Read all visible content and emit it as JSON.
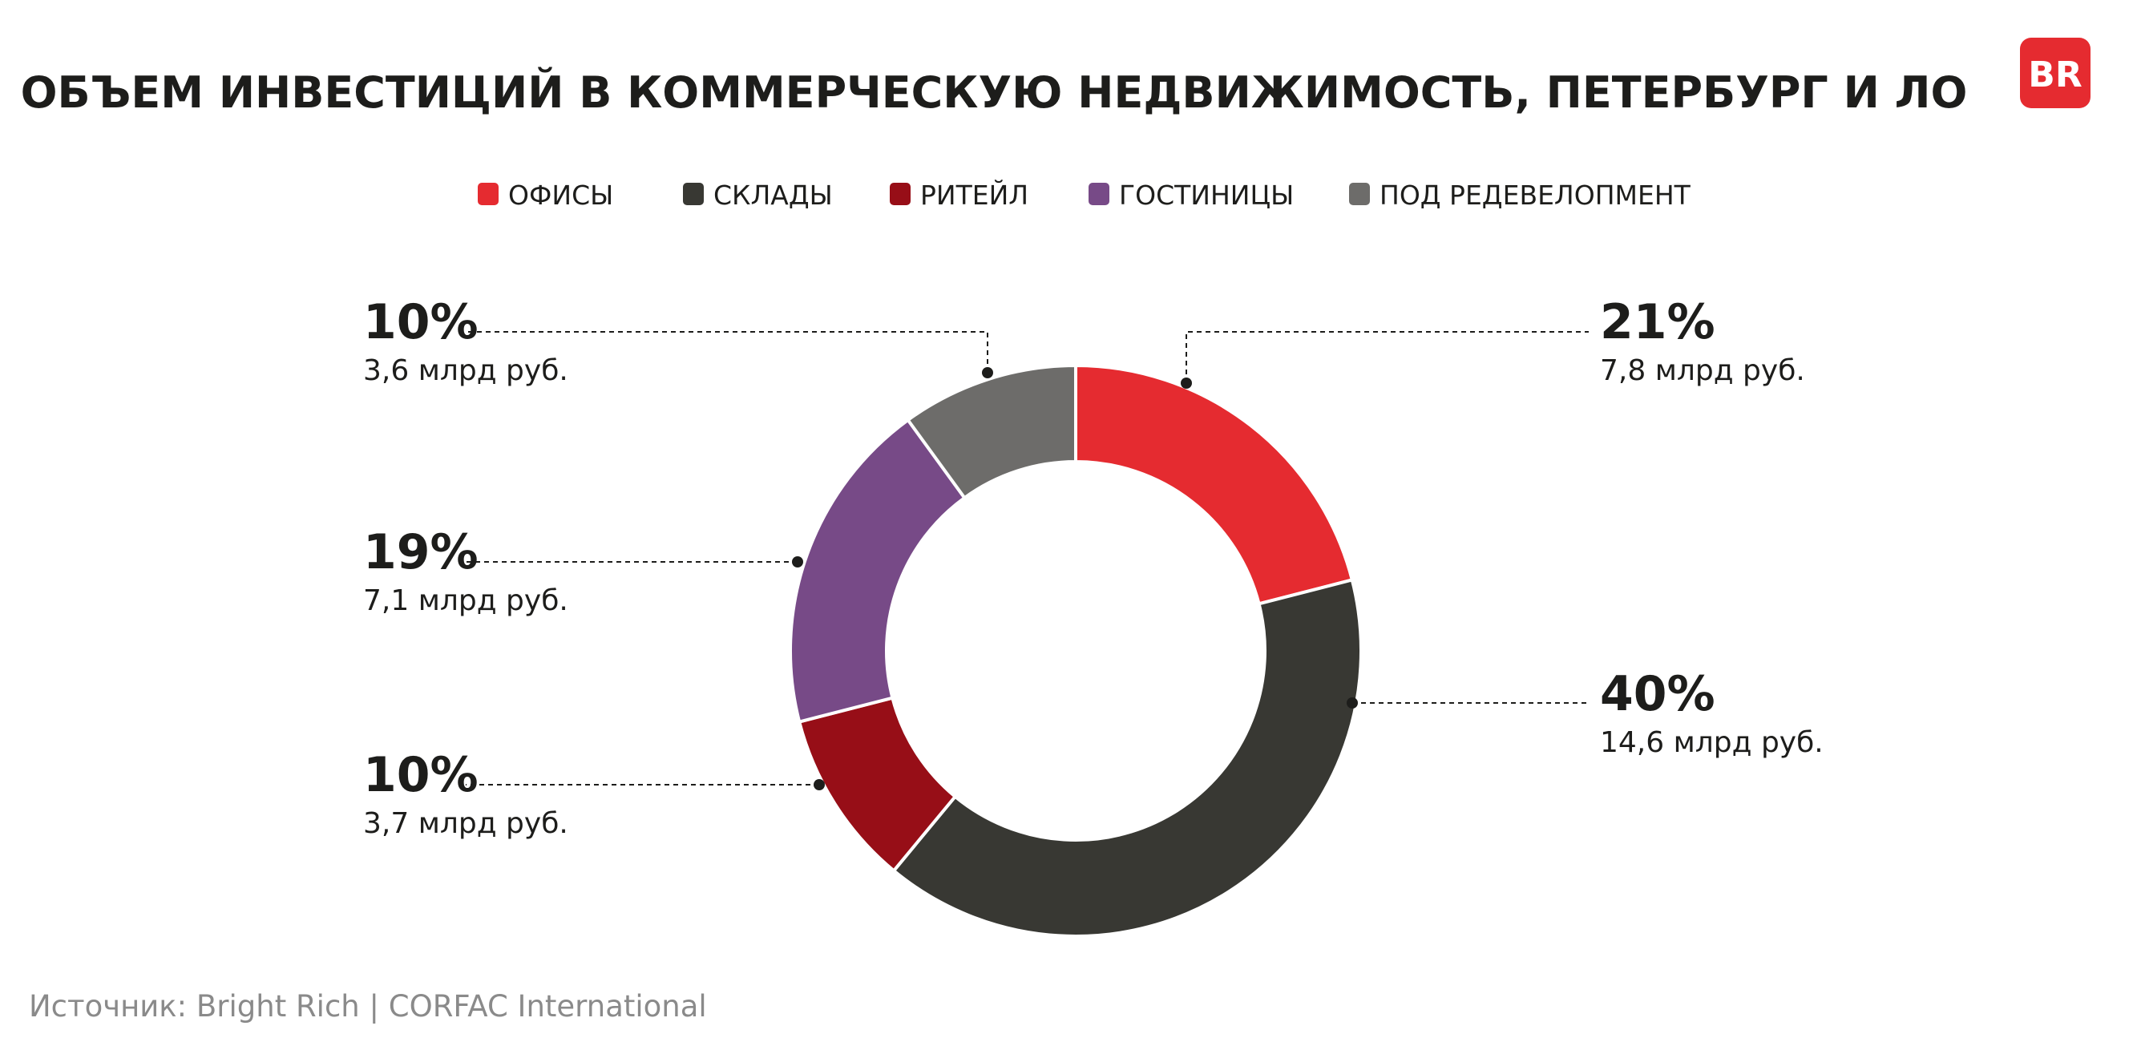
{
  "chart_data": {
    "type": "pie",
    "variant": "donut",
    "title": "ОБЪЕМ ИНВЕСТИЦИЙ В КОММЕРЧЕСКУЮ НЕДВИЖИМОСТЬ, ПЕТЕРБУРГ И ЛО",
    "legend_position": "top",
    "slices": [
      {
        "name": "ОФИСЫ",
        "percent": 21,
        "percent_label": "21%",
        "value_label": "7,8 млрд руб.",
        "value": 7.8,
        "color": "#e52b30"
      },
      {
        "name": "СКЛАДЫ",
        "percent": 40,
        "percent_label": "40%",
        "value_label": "14,6 млрд руб.",
        "value": 14.6,
        "color": "#383833"
      },
      {
        "name": "РИТЕЙЛ",
        "percent": 10,
        "percent_label": "10%",
        "value_label": "3,7 млрд руб.",
        "value": 3.7,
        "color": "#970e17"
      },
      {
        "name": "ГОСТИНИЦЫ",
        "percent": 19,
        "percent_label": "19%",
        "value_label": "7,1 млрд руб.",
        "value": 7.1,
        "color": "#774a87"
      },
      {
        "name": "ПОД РЕДЕВЕЛОПМЕНТ",
        "percent": 10,
        "percent_label": "10%",
        "value_label": "3,6 млрд руб.",
        "value": 3.6,
        "color": "#6d6c6a"
      }
    ],
    "source": "Источник: Bright Rich | CORFAC International"
  },
  "logo": {
    "text": "BR",
    "color": "#e52b30"
  }
}
